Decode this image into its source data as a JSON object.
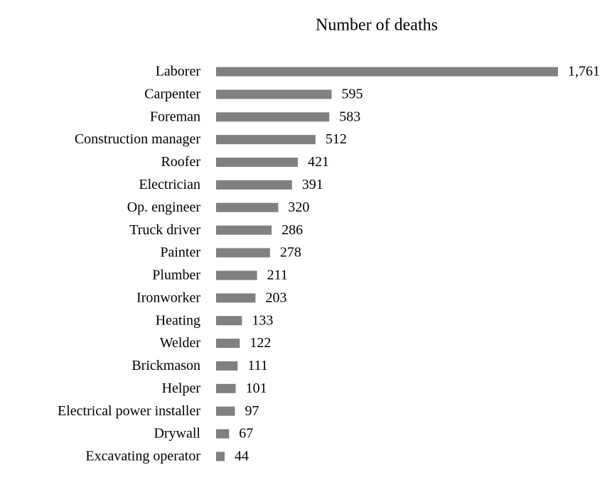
{
  "chart_data": {
    "type": "barh",
    "title": "Number of deaths",
    "categories": [
      "Laborer",
      "Carpenter",
      "Foreman",
      "Construction manager",
      "Roofer",
      "Electrician",
      "Op. engineer",
      "Truck driver",
      "Painter",
      "Plumber",
      "Ironworker",
      "Heating",
      "Welder",
      "Brickmason",
      "Helper",
      "Electrical power installer",
      "Drywall",
      "Excavating operator"
    ],
    "values": [
      1761,
      595,
      583,
      512,
      421,
      391,
      320,
      286,
      278,
      211,
      203,
      133,
      122,
      111,
      101,
      97,
      67,
      44
    ],
    "value_labels": [
      "1,761",
      "595",
      "583",
      "512",
      "421",
      "391",
      "320",
      "286",
      "278",
      "211",
      "203",
      "133",
      "122",
      "111",
      "101",
      "97",
      "67",
      "44"
    ],
    "color": "#808080",
    "xlim": [
      0,
      1761
    ]
  }
}
